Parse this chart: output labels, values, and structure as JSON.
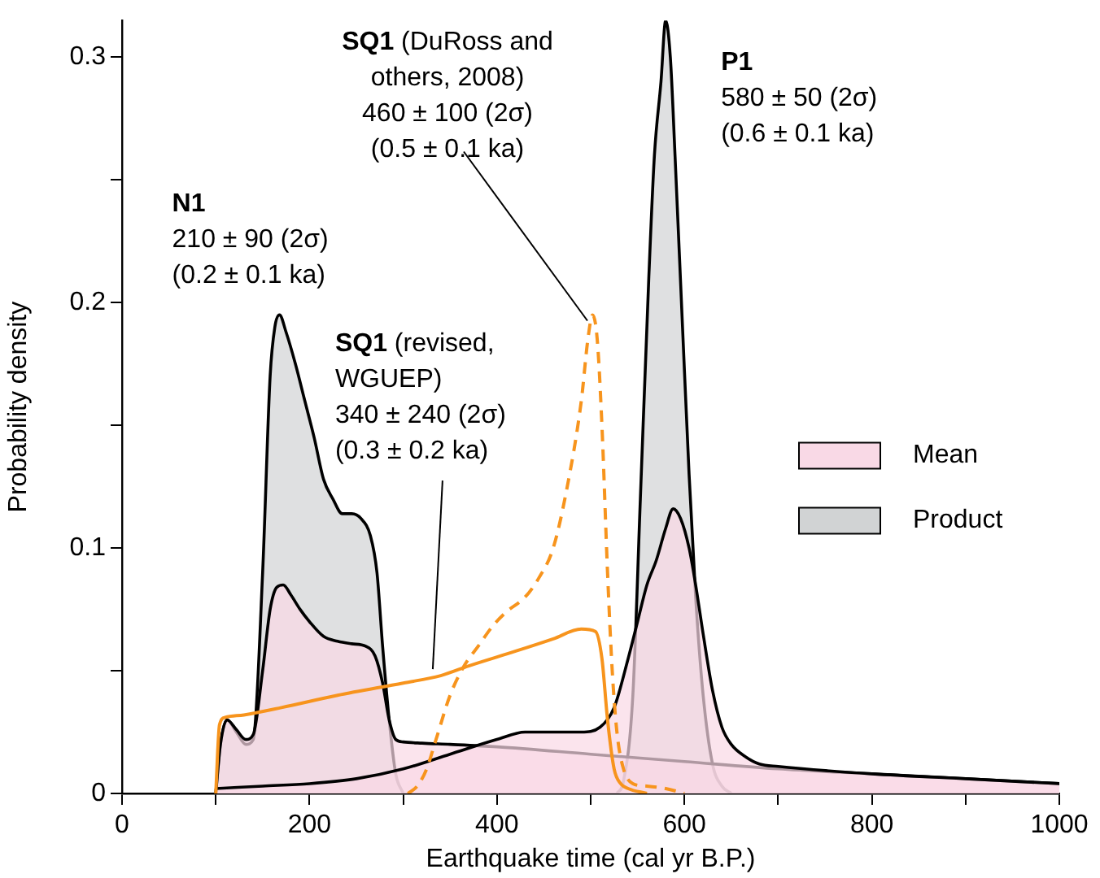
{
  "chart_data": {
    "type": "area",
    "xlabel": "Earthquake time (cal yr B.P.)",
    "ylabel": "Probability density",
    "xlim": [
      0,
      1000
    ],
    "xticks": [
      0,
      {
        "value": 100,
        "label": null
      },
      200,
      {
        "value": 300,
        "label": null
      },
      400,
      {
        "value": 500,
        "label": null
      },
      600,
      {
        "value": 700,
        "label": null
      },
      800,
      {
        "value": 900,
        "label": null
      },
      1000
    ],
    "ylim": [
      0,
      0.315
    ],
    "yticks": [
      0,
      {
        "value": 0.05,
        "label": null
      },
      0.1,
      {
        "value": 0.15,
        "label": null
      },
      0.2,
      {
        "value": 0.25,
        "label": null
      },
      0.3
    ],
    "grid": false,
    "legend": "right",
    "series": [
      {
        "name": "Product",
        "color": "#d1d3d4",
        "x": [
          100,
          105,
          112,
          122,
          132,
          140,
          150,
          158,
          163,
          168,
          175,
          185,
          195,
          205,
          215,
          225,
          235,
          245,
          255,
          265,
          272,
          278,
          285,
          292,
          300
        ],
        "values": [
          0,
          0.02,
          0.03,
          0.025,
          0.02,
          0.022,
          0.09,
          0.17,
          0.19,
          0.195,
          0.188,
          0.175,
          0.16,
          0.145,
          0.128,
          0.12,
          0.114,
          0.114,
          0.112,
          0.105,
          0.09,
          0.06,
          0.03,
          0.008,
          0
        ]
      },
      {
        "color": "#d1d3d4",
        "x": [
          528,
          535,
          545,
          553,
          562,
          568,
          575,
          580,
          585,
          590,
          598,
          605,
          612,
          620,
          630,
          640,
          650
        ],
        "values": [
          0,
          0.005,
          0.04,
          0.12,
          0.21,
          0.26,
          0.29,
          0.315,
          0.3,
          0.26,
          0.19,
          0.13,
          0.08,
          0.04,
          0.012,
          0.003,
          0
        ]
      },
      {
        "name": "Mean",
        "color": "#f9d9e6",
        "x": [
          100,
          105,
          112,
          122,
          132,
          140,
          150,
          158,
          165,
          172,
          180,
          190,
          200,
          215,
          230,
          245,
          260,
          270,
          278,
          285,
          292,
          300,
          320,
          350,
          400,
          500,
          600,
          700,
          800,
          900,
          1000
        ],
        "values": [
          0,
          0.02,
          0.03,
          0.026,
          0.022,
          0.024,
          0.05,
          0.075,
          0.084,
          0.085,
          0.081,
          0.075,
          0.07,
          0.064,
          0.062,
          0.061,
          0.06,
          0.056,
          0.045,
          0.03,
          0.022,
          0.021,
          0.0205,
          0.02,
          0.019,
          0.016,
          0.013,
          0.01,
          0.008,
          0.006,
          0.004
        ]
      },
      {
        "color": "#f9d9e6",
        "x": [
          100,
          150,
          200,
          250,
          300,
          350,
          400,
          430,
          460,
          490,
          510,
          525,
          540,
          550,
          560,
          570,
          580,
          588,
          596,
          605,
          612,
          620,
          630,
          640,
          650,
          665,
          680,
          700,
          800,
          900,
          1000
        ],
        "values": [
          0.002,
          0.003,
          0.004,
          0.006,
          0.01,
          0.016,
          0.022,
          0.025,
          0.025,
          0.025,
          0.027,
          0.035,
          0.055,
          0.07,
          0.085,
          0.095,
          0.108,
          0.116,
          0.112,
          0.1,
          0.085,
          0.065,
          0.042,
          0.027,
          0.02,
          0.015,
          0.012,
          0.011,
          0.008,
          0.006,
          0.004
        ]
      },
      {
        "type": "line",
        "color": "#f7941d",
        "x": [
          100,
          104,
          110,
          130,
          170,
          230,
          300,
          340,
          370,
          420,
          460,
          490,
          505,
          512,
          518,
          525,
          532,
          540,
          560
        ],
        "values": [
          0,
          0.028,
          0.031,
          0.032,
          0.035,
          0.04,
          0.045,
          0.048,
          0.052,
          0.058,
          0.063,
          0.067,
          0.066,
          0.055,
          0.03,
          0.01,
          0.004,
          0.002,
          0
        ]
      },
      {
        "type": "line",
        "color": "#f7941d",
        "line_style": "dashed",
        "x": [
          305,
          315,
          325,
          335,
          350,
          365,
          380,
          395,
          410,
          430,
          445,
          460,
          475,
          490,
          497,
          502,
          507,
          512,
          518,
          523,
          528,
          535,
          545,
          560,
          580,
          600
        ],
        "values": [
          0,
          0.003,
          0.01,
          0.022,
          0.04,
          0.052,
          0.06,
          0.068,
          0.074,
          0.08,
          0.088,
          0.1,
          0.125,
          0.16,
          0.185,
          0.195,
          0.185,
          0.15,
          0.09,
          0.05,
          0.025,
          0.01,
          0.004,
          0.003,
          0.002,
          0
        ]
      }
    ],
    "annotations": [
      {
        "text": "N1\n210 ± 90 (2σ)\n(0.2 ± 0.1 ka)",
        "x": 168,
        "y": 0.195
      },
      {
        "text": "SQ1 (DuRoss and\nothers, 2008)\n460 ± 100 (2σ)\n(0.5 ± 0.1 ka)",
        "x": 500,
        "y": 0.19
      },
      {
        "text": "SQ1 (revised,\nWGUEP)\n340 ± 240 (2σ)\n(0.3 ± 0.2 ka)",
        "x": 335,
        "y": 0.048
      },
      {
        "text": "P1\n580 ± 50 (2σ)\n(0.6 ± 0.1 ka)",
        "x": 580,
        "y": 0.315
      }
    ]
  }
}
